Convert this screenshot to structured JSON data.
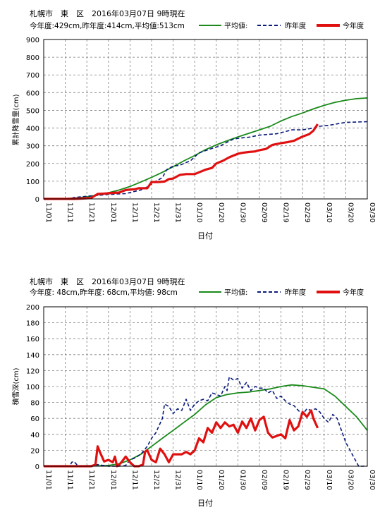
{
  "colors": {
    "avg": "#1a8a1a",
    "last_year": "#0a1a7a",
    "this_year": "#e01010",
    "grid": "#7f7f7f"
  },
  "x_ticks": [
    "11/01",
    "11/11",
    "11/21",
    "12/01",
    "12/11",
    "12/21",
    "12/31",
    "01/10",
    "01/20",
    "01/30",
    "02/09",
    "02/19",
    "02/29",
    "03/10",
    "03/20",
    "03/30"
  ],
  "chart_data": [
    {
      "type": "line",
      "title": "札幌市　東　区　2016年03月07日 9時現在",
      "subtitle": "今年度:429cm,昨年度:414cm,平均値:513cm",
      "xlabel": "日付",
      "ylabel": "累計降雪量(cm)",
      "ylim": [
        0,
        900
      ],
      "yticks": [
        "0",
        "100",
        "200",
        "300",
        "400",
        "500",
        "600",
        "700",
        "800",
        "900"
      ],
      "grid": true,
      "legend_position": "top-right",
      "series": [
        {
          "name": "平均値:",
          "style": "solid-green",
          "x": [
            0,
            5,
            10,
            15,
            20,
            25,
            30,
            35,
            40,
            45,
            50,
            55,
            60,
            65,
            70,
            75,
            80,
            85,
            90,
            95,
            100,
            105,
            110,
            115,
            120,
            125,
            130,
            135,
            140,
            145,
            150
          ],
          "values": [
            0,
            0,
            2,
            5,
            12,
            22,
            35,
            50,
            70,
            95,
            122,
            150,
            182,
            215,
            245,
            278,
            305,
            328,
            350,
            370,
            390,
            410,
            440,
            465,
            485,
            508,
            528,
            545,
            557,
            566,
            570
          ]
        },
        {
          "name": "昨年度",
          "style": "dashed-navy",
          "x": [
            0,
            12,
            14,
            20,
            23,
            25,
            30,
            38,
            42,
            45,
            48,
            52,
            55,
            57,
            60,
            63,
            68,
            72,
            78,
            82,
            85,
            88,
            92,
            95,
            100,
            105,
            108,
            112,
            115,
            120,
            125,
            128,
            132,
            140,
            150
          ],
          "values": [
            0,
            0,
            8,
            15,
            18,
            20,
            25,
            30,
            42,
            50,
            68,
            100,
            120,
            165,
            185,
            190,
            215,
            260,
            285,
            300,
            320,
            338,
            345,
            348,
            360,
            365,
            368,
            380,
            390,
            390,
            400,
            410,
            415,
            432,
            436
          ]
        },
        {
          "name": "今年度",
          "style": "solid-red",
          "x": [
            0,
            14,
            18,
            22,
            25,
            28,
            32,
            35,
            38,
            42,
            44,
            48,
            50,
            53,
            56,
            58,
            60,
            63,
            66,
            70,
            72,
            75,
            78,
            80,
            83,
            86,
            90,
            92,
            95,
            98,
            100,
            103,
            106,
            110,
            113,
            116,
            120,
            123,
            125,
            127
          ],
          "values": [
            0,
            0,
            2,
            5,
            28,
            30,
            34,
            36,
            50,
            54,
            60,
            60,
            95,
            95,
            98,
            112,
            115,
            135,
            140,
            140,
            150,
            165,
            175,
            200,
            215,
            235,
            255,
            260,
            265,
            268,
            275,
            282,
            305,
            315,
            320,
            328,
            352,
            365,
            385,
            422
          ]
        }
      ]
    },
    {
      "type": "line",
      "title": "札幌市　東　区　2016年03月07日 9時現在",
      "subtitle": "今年度: 48cm,昨年度: 68cm,平均値: 98cm",
      "xlabel": "日付",
      "ylabel": "積雪深(cm)",
      "ylim": [
        0,
        200
      ],
      "yticks": [
        "0",
        "20",
        "40",
        "60",
        "80",
        "100",
        "120",
        "140",
        "160",
        "180",
        "200"
      ],
      "grid": true,
      "legend_position": "top-right",
      "series": [
        {
          "name": "平均値:",
          "style": "solid-green",
          "x": [
            0,
            20,
            30,
            35,
            40,
            45,
            50,
            55,
            60,
            65,
            70,
            75,
            80,
            85,
            90,
            95,
            100,
            105,
            110,
            115,
            120,
            125,
            130,
            135,
            140,
            145,
            150
          ],
          "values": [
            0,
            0,
            1,
            3,
            8,
            15,
            25,
            35,
            45,
            55,
            65,
            77,
            86,
            90,
            92,
            93,
            95,
            97,
            100,
            102,
            101,
            99,
            97,
            88,
            75,
            62,
            45
          ]
        },
        {
          "name": "昨年度",
          "style": "dashed-navy",
          "x": [
            0,
            12,
            13,
            14,
            16,
            20,
            25,
            30,
            35,
            38,
            40,
            42,
            45,
            48,
            50,
            52,
            55,
            56,
            58,
            60,
            62,
            64,
            66,
            68,
            70,
            72,
            74,
            76,
            78,
            80,
            82,
            84,
            85,
            86,
            88,
            90,
            92,
            94,
            96,
            98,
            100,
            102,
            104,
            106,
            108,
            110,
            112,
            114,
            116,
            118,
            120,
            122,
            124,
            126,
            128,
            130,
            132,
            134,
            136,
            138,
            140,
            142,
            144,
            146,
            148,
            150
          ],
          "values": [
            0,
            0,
            5,
            6,
            0,
            0,
            2,
            0,
            0,
            1,
            8,
            10,
            15,
            25,
            35,
            42,
            60,
            78,
            75,
            66,
            72,
            70,
            84,
            70,
            78,
            82,
            84,
            82,
            92,
            90,
            88,
            100,
            95,
            112,
            108,
            110,
            98,
            105,
            95,
            100,
            98,
            98,
            92,
            95,
            85,
            88,
            82,
            78,
            76,
            70,
            65,
            72,
            70,
            72,
            68,
            60,
            55,
            65,
            60,
            45,
            30,
            20,
            10,
            0,
            0,
            0
          ]
        },
        {
          "name": "今年度",
          "style": "solid-red",
          "x": [
            0,
            22,
            24,
            25,
            26,
            28,
            30,
            32,
            33,
            34,
            35,
            36,
            38,
            40,
            42,
            44,
            46,
            47,
            48,
            50,
            52,
            54,
            56,
            58,
            60,
            62,
            64,
            66,
            68,
            70,
            72,
            74,
            76,
            78,
            80,
            82,
            84,
            86,
            88,
            90,
            92,
            94,
            96,
            98,
            100,
            102,
            104,
            106,
            108,
            110,
            112,
            114,
            116,
            118,
            120,
            122,
            124,
            125,
            127
          ],
          "values": [
            0,
            0,
            2,
            25,
            18,
            6,
            8,
            5,
            12,
            0,
            2,
            5,
            12,
            5,
            0,
            0,
            2,
            18,
            20,
            8,
            5,
            22,
            15,
            5,
            15,
            15,
            15,
            18,
            15,
            20,
            35,
            30,
            48,
            42,
            55,
            48,
            55,
            50,
            52,
            42,
            56,
            48,
            60,
            45,
            58,
            62,
            42,
            36,
            38,
            40,
            35,
            58,
            45,
            50,
            68,
            62,
            70,
            60,
            48
          ]
        }
      ]
    }
  ]
}
